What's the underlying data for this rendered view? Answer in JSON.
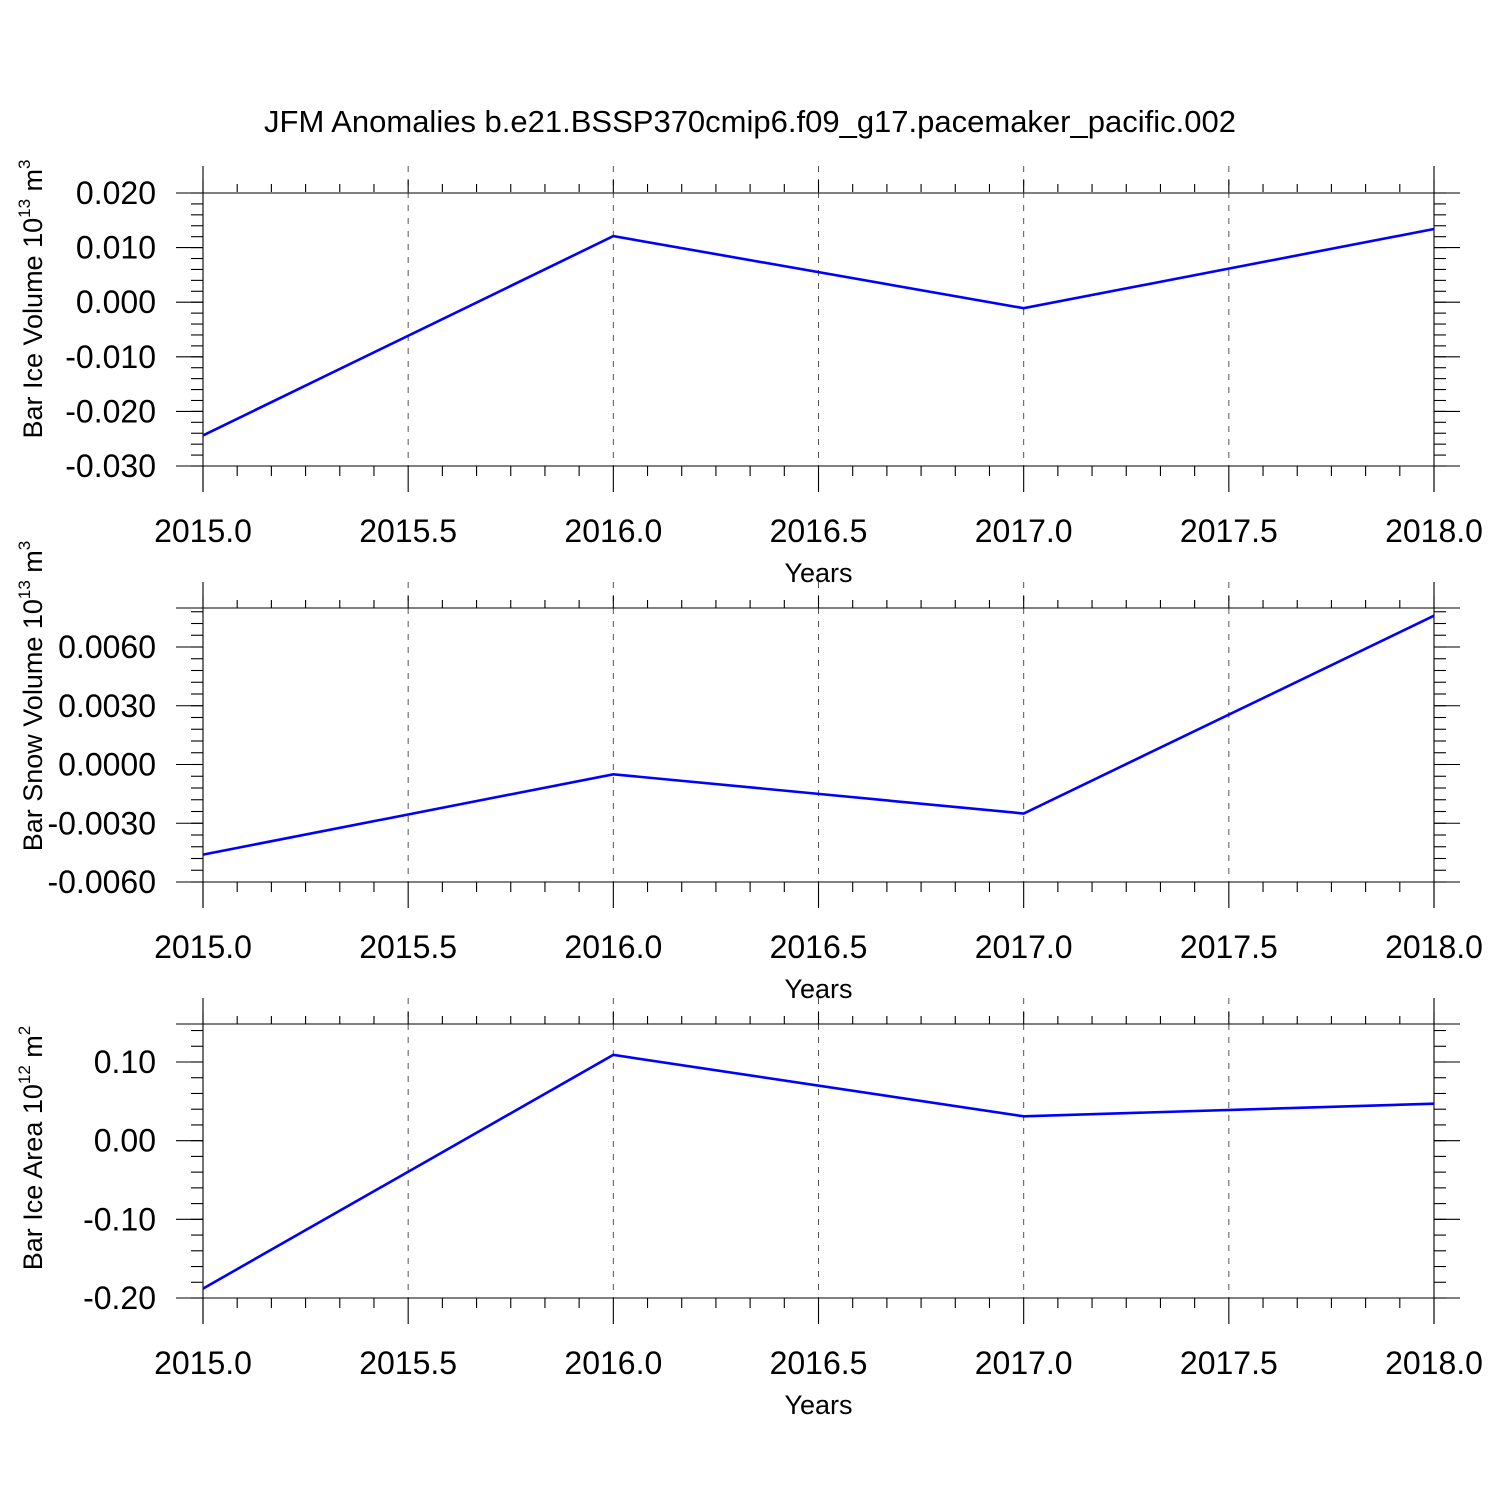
{
  "title": "JFM Anomalies b.e21.BSSP370cmip6.f09_g17.pacemaker_pacific.002",
  "colors": {
    "line": "#0000ff",
    "axis": "#000000",
    "grid": "#555555",
    "background": "#ffffff"
  },
  "chart_data": [
    {
      "type": "line",
      "title": "",
      "xlabel": "Years",
      "ylabel": {
        "text": "Bar Ice Volume 10",
        "sup": "13",
        "unit": " m",
        "unit_sup": "3"
      },
      "xlim": [
        2015.0,
        2018.0
      ],
      "ylim": [
        -0.03,
        0.02
      ],
      "xticks": [
        2015.0,
        2015.5,
        2016.0,
        2016.5,
        2017.0,
        2017.5,
        2018.0
      ],
      "xtick_labels": [
        "2015.0",
        "2015.5",
        "2016.0",
        "2016.5",
        "2017.0",
        "2017.5",
        "2018.0"
      ],
      "yticks": [
        -0.03,
        -0.02,
        -0.01,
        0.0,
        0.01,
        0.02
      ],
      "ytick_labels": [
        "-0.030",
        "-0.020",
        "-0.010",
        "0.000",
        "0.010",
        "0.020"
      ],
      "grid": "vertical dashed",
      "series": [
        {
          "x": [
            2015,
            2016,
            2017,
            2018
          ],
          "y": [
            -0.0244,
            0.0121,
            -0.0011,
            0.0134
          ]
        }
      ]
    },
    {
      "type": "line",
      "title": "",
      "xlabel": "Years",
      "ylabel": {
        "text": "Bar Snow Volume 10",
        "sup": "13",
        "unit": " m",
        "unit_sup": "3"
      },
      "xlim": [
        2015.0,
        2018.0
      ],
      "ylim": [
        -0.006,
        0.008
      ],
      "xticks": [
        2015.0,
        2015.5,
        2016.0,
        2016.5,
        2017.0,
        2017.5,
        2018.0
      ],
      "xtick_labels": [
        "2015.0",
        "2015.5",
        "2016.0",
        "2016.5",
        "2017.0",
        "2017.5",
        "2018.0"
      ],
      "yticks": [
        -0.006,
        -0.003,
        0.0,
        0.003,
        0.006
      ],
      "ytick_labels": [
        "-0.0060",
        "-0.0030",
        "0.0000",
        "0.0030",
        "0.0060"
      ],
      "grid": "vertical dashed",
      "series": [
        {
          "x": [
            2015,
            2016,
            2017,
            2018
          ],
          "y": [
            -0.0046,
            -0.0005,
            -0.0025,
            0.0076
          ]
        }
      ]
    },
    {
      "type": "line",
      "title": "",
      "xlabel": "Years",
      "ylabel": {
        "text": "Bar Ice Area 10",
        "sup": "12",
        "unit": " m",
        "unit_sup": "2"
      },
      "xlim": [
        2015.0,
        2018.0
      ],
      "ylim": [
        -0.2,
        0.15
      ],
      "xticks": [
        2015.0,
        2015.5,
        2016.0,
        2016.5,
        2017.0,
        2017.5,
        2018.0
      ],
      "xtick_labels": [
        "2015.0",
        "2015.5",
        "2016.0",
        "2016.5",
        "2017.0",
        "2017.5",
        "2018.0"
      ],
      "yticks": [
        -0.2,
        -0.1,
        0.0,
        0.1
      ],
      "ytick_labels": [
        "-0.20",
        "-0.10",
        "0.00",
        "0.10"
      ],
      "grid": "vertical dashed",
      "series": [
        {
          "x": [
            2015,
            2016,
            2017,
            2018
          ],
          "y": [
            -0.188,
            0.109,
            0.031,
            0.047
          ]
        }
      ]
    }
  ]
}
